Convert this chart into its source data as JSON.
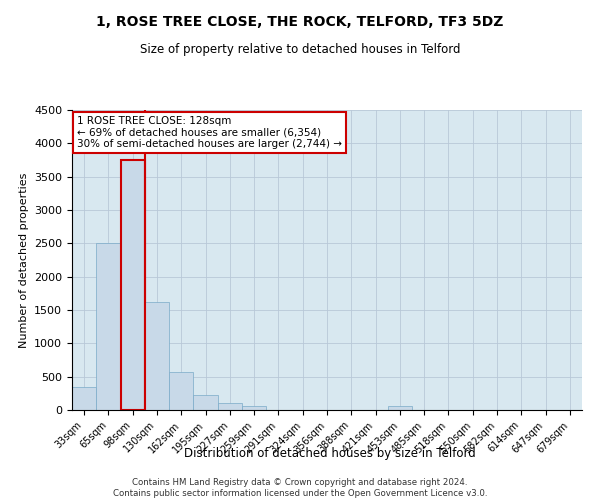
{
  "title1": "1, ROSE TREE CLOSE, THE ROCK, TELFORD, TF3 5DZ",
  "title2": "Size of property relative to detached houses in Telford",
  "xlabel": "Distribution of detached houses by size in Telford",
  "ylabel": "Number of detached properties",
  "categories": [
    "33sqm",
    "65sqm",
    "98sqm",
    "130sqm",
    "162sqm",
    "195sqm",
    "227sqm",
    "259sqm",
    "291sqm",
    "324sqm",
    "356sqm",
    "388sqm",
    "421sqm",
    "453sqm",
    "485sqm",
    "518sqm",
    "550sqm",
    "582sqm",
    "614sqm",
    "647sqm",
    "679sqm"
  ],
  "values": [
    350,
    2500,
    3750,
    1625,
    575,
    225,
    100,
    55,
    0,
    0,
    0,
    0,
    0,
    55,
    0,
    0,
    0,
    0,
    0,
    0,
    0
  ],
  "bar_color": "#c8d9e8",
  "bar_edge_color": "#7aaac8",
  "highlight_bar_index": 2,
  "highlight_edge_color": "#cc0000",
  "annotation_text": "1 ROSE TREE CLOSE: 128sqm\n← 69% of detached houses are smaller (6,354)\n30% of semi-detached houses are larger (2,744) →",
  "annotation_box_color": "#ffffff",
  "annotation_box_edge": "#cc0000",
  "vline_x": 2.5,
  "ylim": [
    0,
    4500
  ],
  "yticks": [
    0,
    500,
    1000,
    1500,
    2000,
    2500,
    3000,
    3500,
    4000,
    4500
  ],
  "grid_color": "#b8c8d8",
  "background_color": "#d8e8f0",
  "footer": "Contains HM Land Registry data © Crown copyright and database right 2024.\nContains public sector information licensed under the Open Government Licence v3.0."
}
